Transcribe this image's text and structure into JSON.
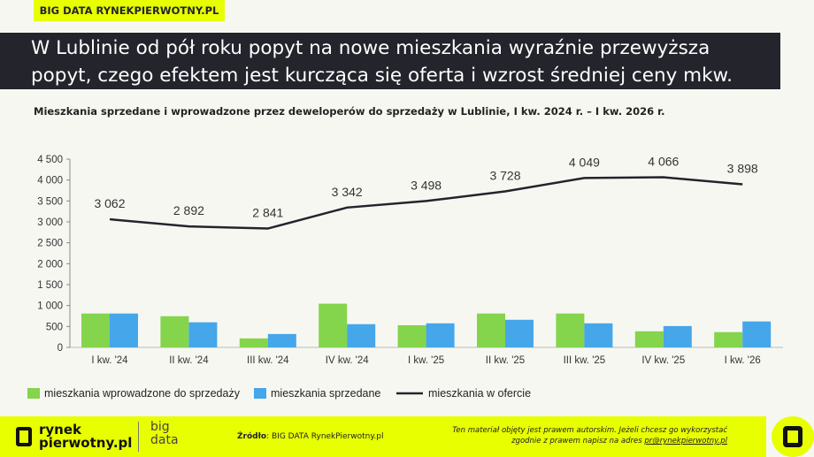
{
  "header": {
    "tag": "BIG DATA RYNEKPIERWOTNY.PL",
    "title_line1": "W Lublinie od pół roku popyt na nowe mieszkania wyraźnie przewyższa",
    "title_line2": "popyt, czego efektem jest kurcząca się oferta i wzrost średniej ceny mkw."
  },
  "footer": {
    "logo_line1": "rynek",
    "logo_line2": "pierwotny.pl",
    "big_line1": "big",
    "big_line2": "data",
    "source_label": "Źródło",
    "source_text": ": BIG DATA RynekPierwotny.pl",
    "copyright_line1": "Ten materiał objęty jest prawem autorskim. Jeżeli chcesz go wykorzystać",
    "copyright_line2": "zgodnie z prawem napisz na adres ",
    "email": "pr@rynekpierwotny.pl"
  },
  "colors": {
    "green": "#84d44c",
    "blue": "#45a6ea",
    "line": "#23242c",
    "accent": "#e8ff00"
  },
  "chart_data": {
    "type": "bar+line",
    "title": "Mieszkania sprzedane i wprowadzone przez deweloperów do sprzedaży w Lublinie, I kw. 2024 r. – I kw. 2026 r.",
    "categories": [
      "I kw. '24",
      "II kw. '24",
      "III kw. '24",
      "IV kw. '24",
      "I kw. '25",
      "II kw. '25",
      "III kw. '25",
      "IV kw. '25",
      "I kw. '26"
    ],
    "ylim": [
      0,
      4500
    ],
    "yticks": [
      0,
      500,
      1000,
      1500,
      2000,
      2500,
      3000,
      3500,
      4000,
      4500
    ],
    "ytick_labels": [
      "0",
      "500",
      "1 000",
      "1 500",
      "2 000",
      "2 500",
      "3 000",
      "3 500",
      "4 000",
      "4 500"
    ],
    "series": [
      {
        "name": "mieszkania wprowadzone do sprzedaży",
        "type": "bar",
        "values": [
          810,
          745,
          215,
          1045,
          530,
          810,
          810,
          385,
          365
        ]
      },
      {
        "name": "mieszkania sprzedane",
        "type": "bar",
        "values": [
          810,
          600,
          320,
          555,
          575,
          660,
          575,
          510,
          620
        ]
      },
      {
        "name": "mieszkania w ofercie",
        "type": "line",
        "values": [
          3062,
          2892,
          2841,
          3342,
          3498,
          3728,
          4049,
          4066,
          3898
        ],
        "labels": [
          "3 062",
          "2 892",
          "2 841",
          "3 342",
          "3 498",
          "3 728",
          "4 049",
          "4 066",
          "3 898"
        ]
      }
    ],
    "legend": "bottom-left"
  }
}
